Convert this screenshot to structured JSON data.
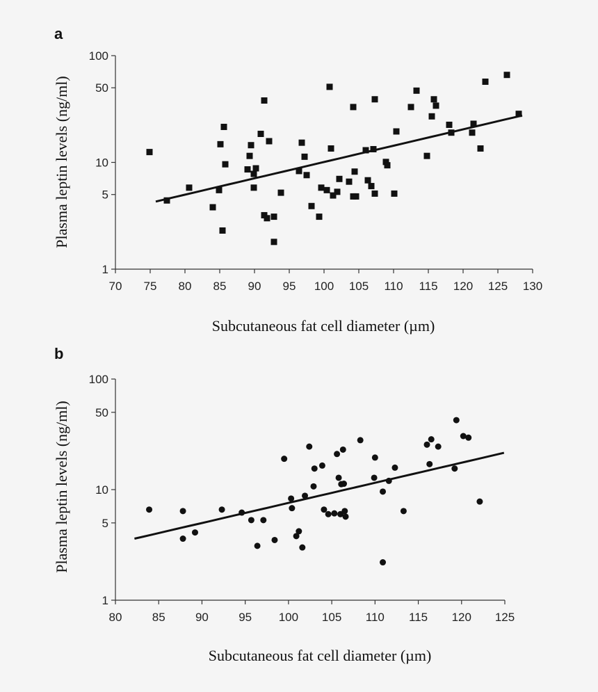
{
  "chart_data": [
    {
      "panel": "a",
      "type": "scatter",
      "xlabel": "Subcutaneous fat cell diameter (µm)",
      "ylabel": "Plasma leptin levels (ng/ml)",
      "xlim": [
        70,
        130
      ],
      "ylim": [
        1,
        100
      ],
      "yscale": "log",
      "xticks": [
        "70",
        "75",
        "80",
        "85",
        "90",
        "95",
        "100",
        "105",
        "110",
        "115",
        "120",
        "125",
        "130"
      ],
      "yticks": [
        "1",
        "5",
        "10",
        "50",
        "100"
      ],
      "marker": "square",
      "points": [
        [
          74.9,
          12.5
        ],
        [
          77.4,
          4.4
        ],
        [
          80.6,
          5.8
        ],
        [
          84.0,
          3.8
        ],
        [
          84.9,
          5.5
        ],
        [
          85.1,
          14.8
        ],
        [
          85.4,
          2.3
        ],
        [
          85.6,
          21.5
        ],
        [
          85.8,
          9.6
        ],
        [
          89.0,
          8.6
        ],
        [
          89.3,
          11.5
        ],
        [
          89.5,
          14.5
        ],
        [
          89.9,
          7.8
        ],
        [
          89.9,
          5.8
        ],
        [
          90.2,
          8.8
        ],
        [
          90.9,
          18.5
        ],
        [
          91.4,
          3.2
        ],
        [
          91.4,
          38.0
        ],
        [
          91.8,
          3.0
        ],
        [
          92.1,
          15.8
        ],
        [
          92.8,
          3.1
        ],
        [
          92.8,
          1.8
        ],
        [
          93.8,
          5.2
        ],
        [
          96.4,
          8.3
        ],
        [
          96.8,
          15.3
        ],
        [
          97.2,
          11.3
        ],
        [
          97.5,
          7.6
        ],
        [
          98.2,
          3.9
        ],
        [
          99.3,
          3.1
        ],
        [
          99.6,
          5.8
        ],
        [
          100.4,
          5.5
        ],
        [
          100.8,
          51.0
        ],
        [
          101.0,
          13.5
        ],
        [
          101.3,
          4.9
        ],
        [
          101.9,
          5.3
        ],
        [
          102.2,
          7.0
        ],
        [
          103.6,
          6.6
        ],
        [
          104.2,
          4.8
        ],
        [
          104.2,
          33.0
        ],
        [
          104.4,
          8.2
        ],
        [
          104.6,
          4.8
        ],
        [
          106.0,
          13.0
        ],
        [
          106.3,
          6.8
        ],
        [
          106.8,
          6.0
        ],
        [
          107.1,
          13.3
        ],
        [
          107.3,
          5.1
        ],
        [
          107.3,
          39.0
        ],
        [
          108.9,
          10.1
        ],
        [
          109.1,
          9.4
        ],
        [
          110.1,
          5.1
        ],
        [
          110.4,
          19.5
        ],
        [
          112.5,
          33.0
        ],
        [
          113.3,
          47.0
        ],
        [
          114.8,
          11.5
        ],
        [
          115.5,
          27.0
        ],
        [
          115.8,
          39.0
        ],
        [
          116.1,
          34.0
        ],
        [
          118.0,
          22.5
        ],
        [
          118.3,
          19.0
        ],
        [
          121.3,
          19.0
        ],
        [
          121.5,
          23.0
        ],
        [
          122.5,
          13.5
        ],
        [
          123.2,
          57.0
        ],
        [
          126.3,
          66.0
        ],
        [
          128.0,
          28.5
        ]
      ],
      "fit_line": {
        "x": [
          75.8,
          128.5
        ],
        "y": [
          4.3,
          27.5
        ]
      }
    },
    {
      "panel": "b",
      "type": "scatter",
      "xlabel": "Subcutaneous fat cell diameter (µm)",
      "ylabel": "Plasma leptin levels (ng/ml)",
      "xlim": [
        80,
        125
      ],
      "ylim": [
        1,
        100
      ],
      "yscale": "log",
      "xticks": [
        "80",
        "85",
        "90",
        "95",
        "100",
        "105",
        "110",
        "115",
        "120",
        "125"
      ],
      "yticks": [
        "1",
        "5",
        "10",
        "50",
        "100"
      ],
      "marker": "circle",
      "points": [
        [
          83.9,
          6.6
        ],
        [
          87.8,
          6.4
        ],
        [
          87.8,
          3.6
        ],
        [
          89.2,
          4.1
        ],
        [
          92.3,
          6.6
        ],
        [
          94.6,
          6.2
        ],
        [
          95.7,
          5.3
        ],
        [
          96.4,
          3.1
        ],
        [
          97.1,
          5.3
        ],
        [
          98.4,
          3.5
        ],
        [
          99.5,
          19.0
        ],
        [
          100.3,
          8.3
        ],
        [
          100.4,
          6.8
        ],
        [
          100.9,
          3.8
        ],
        [
          101.2,
          4.2
        ],
        [
          101.6,
          3.0
        ],
        [
          101.9,
          8.8
        ],
        [
          102.4,
          24.5
        ],
        [
          102.9,
          10.7
        ],
        [
          103.0,
          15.5
        ],
        [
          103.9,
          16.5
        ],
        [
          104.1,
          6.6
        ],
        [
          104.6,
          6.0
        ],
        [
          105.3,
          6.1
        ],
        [
          105.6,
          21.0
        ],
        [
          105.8,
          12.8
        ],
        [
          106.0,
          6.0
        ],
        [
          106.1,
          11.2
        ],
        [
          106.3,
          23.0
        ],
        [
          106.4,
          11.3
        ],
        [
          106.5,
          6.4
        ],
        [
          106.6,
          5.7
        ],
        [
          108.3,
          28.0
        ],
        [
          109.9,
          12.8
        ],
        [
          110.0,
          19.5
        ],
        [
          110.9,
          9.6
        ],
        [
          110.9,
          2.2
        ],
        [
          111.6,
          12.0
        ],
        [
          112.3,
          15.8
        ],
        [
          113.3,
          6.4
        ],
        [
          116.0,
          25.5
        ],
        [
          116.3,
          17.0
        ],
        [
          116.5,
          28.5
        ],
        [
          117.3,
          24.5
        ],
        [
          119.2,
          15.5
        ],
        [
          119.4,
          42.5
        ],
        [
          120.2,
          30.5
        ],
        [
          120.8,
          29.5
        ],
        [
          122.1,
          7.8
        ]
      ],
      "fit_line": {
        "x": [
          82.2,
          124.9
        ],
        "y": [
          3.6,
          21.5
        ]
      }
    }
  ]
}
